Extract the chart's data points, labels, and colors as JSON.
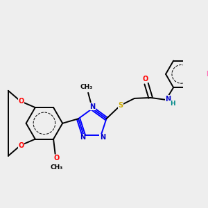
{
  "bg_color": "#eeeeee",
  "atom_colors": {
    "C": "#000000",
    "N": "#0000cc",
    "O": "#ff0000",
    "S": "#ccaa00",
    "F": "#ff69b4",
    "H": "#008888"
  },
  "bond_color": "#000000",
  "bond_width": 1.4
}
